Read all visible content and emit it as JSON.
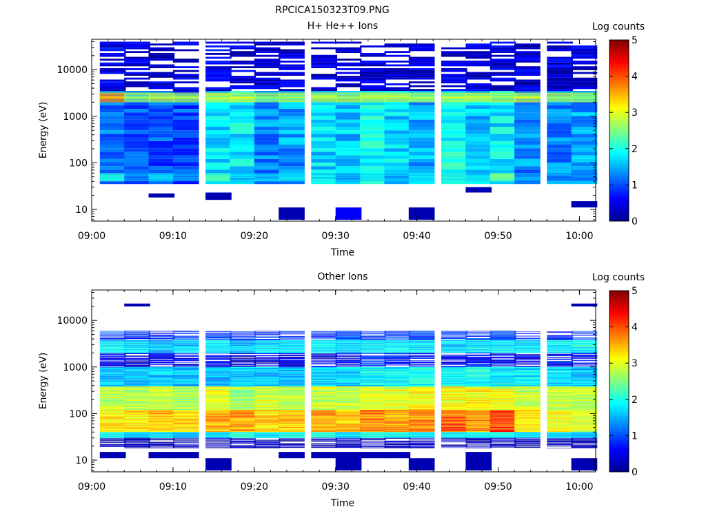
{
  "figure_title": "RPCICA150323T09.PNG",
  "chart_data": [
    {
      "type": "heatmap",
      "title": "H+ He++ Ions",
      "xlabel": "Time",
      "ylabel": "Energy (eV)",
      "y_scale": "log",
      "ylim": [
        5.6,
        45000
      ],
      "x_range": [
        "09:00",
        "10:02"
      ],
      "x_ticks": [
        "09:00",
        "09:10",
        "09:20",
        "09:30",
        "09:40",
        "09:50",
        "10:00"
      ],
      "y_ticks": [
        "10",
        "100",
        "1000",
        "10000"
      ],
      "colorbar": {
        "label": "Log counts",
        "range": [
          0,
          5
        ],
        "ticks": [
          "0",
          "1",
          "2",
          "3",
          "4",
          "5"
        ]
      },
      "time_bins_start_min": [
        1,
        4,
        7,
        10,
        14,
        17,
        20,
        23,
        27,
        30,
        33,
        36,
        39,
        43,
        46,
        49,
        52,
        56,
        59
      ],
      "bands": [
        {
          "e_min": 35,
          "e_max": 3500,
          "values": [
            1.2,
            1.1,
            1.0,
            1.0,
            1.7,
            1.8,
            1.3,
            1.4,
            1.7,
            1.6,
            1.9,
            1.7,
            1.5,
            1.9,
            1.6,
            1.8,
            1.3,
            1.3,
            1.4
          ]
        },
        {
          "e_min": 2000,
          "e_max": 3200,
          "values": [
            3.6,
            2.6,
            2.7,
            2.7,
            2.8,
            2.8,
            2.6,
            2.7,
            2.8,
            2.7,
            2.8,
            2.8,
            2.7,
            2.8,
            2.8,
            2.7,
            2.8,
            2.6,
            2.6
          ]
        },
        {
          "e_min": 3500,
          "e_max": 40000,
          "values": [
            0.5,
            0.4,
            0.4,
            0.4,
            0.5,
            0.4,
            0.4,
            0.4,
            0.4,
            0.4,
            0.4,
            0.4,
            0.4,
            0.4,
            0.4,
            0.4,
            0.4,
            0.4,
            0.4
          ]
        },
        {
          "e_min": 40,
          "e_max": 60,
          "values": [
            2.0,
            1.3,
            1.8,
            1.4,
            2.2,
            1.6,
            1.6,
            1.8,
            1.8,
            1.4,
            1.8,
            1.5,
            1.8,
            2.0,
            1.7,
            2.4,
            1.4,
            1.3,
            1.3
          ]
        }
      ],
      "sparse_cells": [
        {
          "time_bin": 2,
          "e_min": 18,
          "e_max": 22,
          "value": 0.2
        },
        {
          "time_bin": 4,
          "e_min": 16,
          "e_max": 23,
          "value": 0.2
        },
        {
          "time_bin": 7,
          "e_min": 6,
          "e_max": 11,
          "value": 0.2
        },
        {
          "time_bin": 9,
          "e_min": 6,
          "e_max": 11,
          "value": 0.6
        },
        {
          "time_bin": 12,
          "e_min": 6,
          "e_max": 11,
          "value": 0.2
        },
        {
          "time_bin": 14,
          "e_min": 23,
          "e_max": 30,
          "value": 0.2
        },
        {
          "time_bin": 18,
          "e_min": 11,
          "e_max": 15,
          "value": 0.2
        }
      ]
    },
    {
      "type": "heatmap",
      "title": "Other Ions",
      "xlabel": "Time",
      "ylabel": "Energy (eV)",
      "y_scale": "log",
      "ylim": [
        5.6,
        45000
      ],
      "x_range": [
        "09:00",
        "10:02"
      ],
      "x_ticks": [
        "09:00",
        "09:10",
        "09:20",
        "09:30",
        "09:40",
        "09:50",
        "10:00"
      ],
      "y_ticks": [
        "10",
        "100",
        "1000",
        "10000"
      ],
      "colorbar": {
        "label": "Log counts",
        "range": [
          0,
          5
        ],
        "ticks": [
          "0",
          "1",
          "2",
          "3",
          "4",
          "5"
        ]
      },
      "time_bins_start_min": [
        1,
        4,
        7,
        10,
        14,
        17,
        20,
        23,
        27,
        30,
        33,
        36,
        39,
        43,
        46,
        49,
        52,
        56,
        59
      ],
      "bands": [
        {
          "e_min": 3800,
          "e_max": 6000,
          "values": [
            0.9,
            0.8,
            0.8,
            0.9,
            0.9,
            0.8,
            0.8,
            0.9,
            0.9,
            1.0,
            0.9,
            0.9,
            1.0,
            0.9,
            0.9,
            1.0,
            0.8,
            0.8,
            0.9
          ]
        },
        {
          "e_min": 2000,
          "e_max": 3800,
          "values": [
            1.8,
            1.7,
            1.6,
            1.7,
            1.8,
            1.6,
            1.7,
            1.7,
            1.8,
            1.7,
            1.8,
            1.8,
            1.8,
            1.7,
            1.8,
            1.8,
            1.7,
            1.8,
            1.9
          ]
        },
        {
          "e_min": 1000,
          "e_max": 2000,
          "values": [
            0.6,
            0.4,
            0.5,
            0.5,
            0.6,
            0.3,
            0.5,
            0.5,
            0.5,
            0.5,
            0.9,
            0.7,
            0.6,
            0.6,
            0.7,
            0.6,
            0.6,
            0.6,
            0.7
          ]
        },
        {
          "e_min": 380,
          "e_max": 1000,
          "values": [
            1.6,
            1.5,
            1.6,
            1.6,
            1.5,
            1.6,
            1.6,
            1.5,
            1.6,
            1.7,
            1.8,
            1.9,
            1.9,
            1.9,
            1.9,
            1.8,
            1.8,
            1.7,
            1.6
          ]
        },
        {
          "e_min": 120,
          "e_max": 380,
          "values": [
            2.8,
            2.7,
            2.8,
            2.7,
            3.0,
            2.7,
            2.9,
            2.8,
            2.9,
            2.8,
            3.1,
            3.0,
            3.1,
            3.1,
            3.1,
            3.0,
            2.9,
            2.9,
            2.8
          ]
        },
        {
          "e_min": 40,
          "e_max": 120,
          "values": [
            3.2,
            3.2,
            3.4,
            3.3,
            3.5,
            3.6,
            3.3,
            3.4,
            3.6,
            3.4,
            3.7,
            3.6,
            3.7,
            3.9,
            3.6,
            4.1,
            3.3,
            3.1,
            3.0
          ]
        },
        {
          "e_min": 30,
          "e_max": 40,
          "values": [
            1.9,
            1.6,
            1.7,
            1.5,
            1.8,
            2.0,
            1.8,
            2.0,
            2.0,
            1.7,
            2.0,
            1.9,
            1.8,
            1.9,
            1.9,
            2.0,
            1.7,
            1.7,
            1.6
          ]
        },
        {
          "e_min": 18,
          "e_max": 30,
          "values": [
            0.2,
            0.2,
            0.2,
            0.2,
            0.2,
            0.2,
            0.2,
            0.2,
            0.2,
            0.2,
            0.2,
            0.2,
            0.2,
            0.2,
            0.2,
            0.2,
            0.2,
            0.2,
            0.2
          ]
        }
      ],
      "sparse_cells": [
        {
          "time_bin": 0,
          "e_min": 11,
          "e_max": 15,
          "value": 0.2
        },
        {
          "time_bin": 2,
          "e_min": 11,
          "e_max": 15,
          "value": 0.2
        },
        {
          "time_bin": 3,
          "e_min": 11,
          "e_max": 15,
          "value": 0.2
        },
        {
          "time_bin": 4,
          "e_min": 6,
          "e_max": 11,
          "value": 0.2
        },
        {
          "time_bin": 7,
          "e_min": 11,
          "e_max": 15,
          "value": 0.2
        },
        {
          "time_bin": 8,
          "e_min": 11,
          "e_max": 15,
          "value": 0.2
        },
        {
          "time_bin": 9,
          "e_min": 6,
          "e_max": 15,
          "value": 0.2
        },
        {
          "time_bin": 10,
          "e_min": 11,
          "e_max": 15,
          "value": 0.2
        },
        {
          "time_bin": 11,
          "e_min": 11,
          "e_max": 15,
          "value": 0.2
        },
        {
          "time_bin": 12,
          "e_min": 6,
          "e_max": 11,
          "value": 0.2
        },
        {
          "time_bin": 14,
          "e_min": 6,
          "e_max": 15,
          "value": 0.2
        },
        {
          "time_bin": 18,
          "e_min": 6,
          "e_max": 11,
          "value": 0.2
        },
        {
          "time_bin": 1,
          "e_min": 20000,
          "e_max": 23000,
          "value": 0.2
        },
        {
          "time_bin": 18,
          "e_min": 20000,
          "e_max": 23000,
          "value": 0.2
        }
      ]
    }
  ]
}
